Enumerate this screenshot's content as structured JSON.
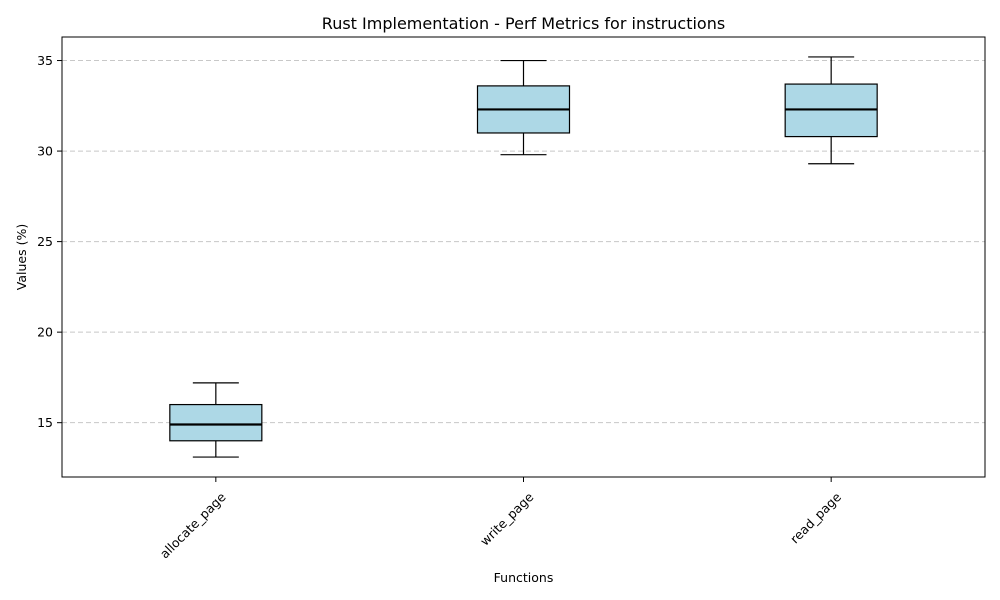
{
  "chart_data": {
    "type": "boxplot",
    "title": "Rust Implementation - Perf Metrics for instructions",
    "xlabel": "Functions",
    "ylabel": "Values (%)",
    "ylim": [
      12,
      36.3
    ],
    "yticks": [
      15,
      20,
      25,
      30,
      35
    ],
    "grid": "y-dashed",
    "categories": [
      "allocate_page",
      "write_page",
      "read_page"
    ],
    "boxes": [
      {
        "name": "allocate_page",
        "whisker_low": 13.1,
        "q1": 14.0,
        "median": 14.9,
        "q3": 16.0,
        "whisker_high": 17.2
      },
      {
        "name": "write_page",
        "whisker_low": 29.8,
        "q1": 31.0,
        "median": 32.3,
        "q3": 33.6,
        "whisker_high": 35.0
      },
      {
        "name": "read_page",
        "whisker_low": 29.3,
        "q1": 30.8,
        "median": 32.3,
        "q3": 33.7,
        "whisker_high": 35.2
      }
    ],
    "colors": {
      "box_fill": "#add8e6",
      "box_edge": "#000000",
      "median": "#000000",
      "grid": "#c8c8c8"
    }
  }
}
